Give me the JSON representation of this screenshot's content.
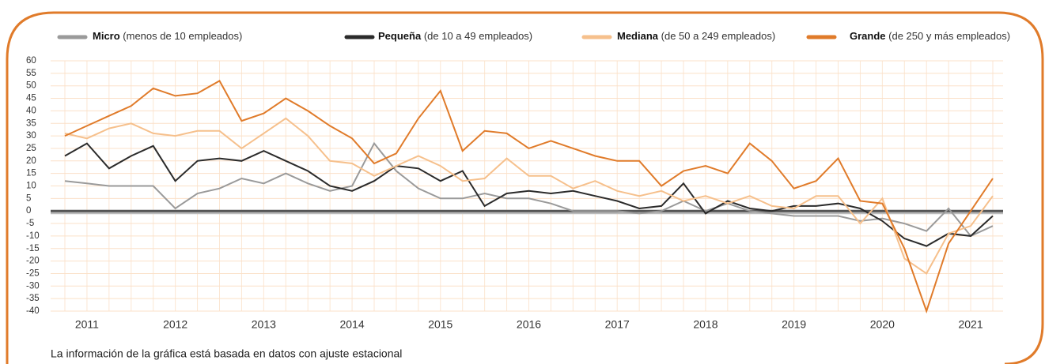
{
  "chart_data": {
    "type": "line",
    "note": "La información de la gráfica está basada en datos con ajuste estacional",
    "categories": [
      null,
      "2011",
      null,
      null,
      null,
      "2012",
      null,
      null,
      null,
      "2013",
      null,
      null,
      null,
      "2014",
      null,
      null,
      null,
      "2015",
      null,
      null,
      null,
      "2016",
      null,
      null,
      null,
      "2017",
      null,
      null,
      null,
      "2018",
      null,
      null,
      null,
      "2019",
      null,
      null,
      null,
      "2020",
      null,
      null,
      null,
      "2021",
      null
    ],
    "series": [
      {
        "name": "Micro",
        "detail": "(menos de 10 empleados)",
        "color": "#9a9a9a",
        "values": [
          12,
          11,
          10,
          10,
          10,
          1,
          7,
          9,
          13,
          11,
          15,
          11,
          8,
          10,
          27,
          16,
          9,
          5,
          5,
          7,
          5,
          5,
          3,
          0,
          0,
          0,
          -1,
          0,
          4,
          0,
          3,
          0,
          -1,
          -2,
          -2,
          -2,
          -4,
          -3,
          -5,
          -8,
          1,
          -10,
          -6
        ]
      },
      {
        "name": "Pequeña",
        "detail": "(de 10 a 49 empleados)",
        "color": "#2b2b2b",
        "values": [
          22,
          27,
          17,
          22,
          26,
          12,
          20,
          21,
          20,
          24,
          20,
          16,
          10,
          8,
          12,
          18,
          17,
          12,
          16,
          2,
          7,
          8,
          7,
          8,
          6,
          4,
          1,
          2,
          11,
          -1,
          4,
          1,
          0,
          2,
          2,
          3,
          1,
          -4,
          -11,
          -14,
          -9,
          -10,
          -2
        ]
      },
      {
        "name": "Mediana",
        "detail": "(de 50 a 249 empleados)",
        "color": "#f6c08c",
        "values": [
          31,
          29,
          33,
          35,
          31,
          30,
          32,
          32,
          25,
          31,
          37,
          30,
          20,
          19,
          14,
          18,
          22,
          18,
          12,
          13,
          21,
          14,
          14,
          9,
          12,
          8,
          6,
          8,
          4,
          6,
          3,
          6,
          2,
          1,
          6,
          6,
          -5,
          5,
          -19,
          -25,
          -9,
          -6,
          6
        ]
      },
      {
        "name": "Grande",
        "detail": "(de 250 y más empleados)",
        "color": "#e07b2a",
        "values": [
          30,
          34,
          38,
          42,
          49,
          46,
          47,
          52,
          36,
          39,
          45,
          40,
          34,
          29,
          19,
          23,
          37,
          48,
          24,
          32,
          31,
          25,
          28,
          25,
          22,
          20,
          20,
          10,
          16,
          18,
          15,
          27,
          20,
          9,
          12,
          21,
          4,
          3,
          -15,
          -40,
          -13,
          0,
          13
        ]
      }
    ],
    "ylim": [
      -40,
      60
    ],
    "yticks": [
      60,
      55,
      50,
      45,
      40,
      35,
      30,
      25,
      20,
      15,
      10,
      5,
      0,
      -5,
      -10,
      -15,
      -20,
      -25,
      -30,
      -35,
      -40
    ],
    "grid": true
  }
}
